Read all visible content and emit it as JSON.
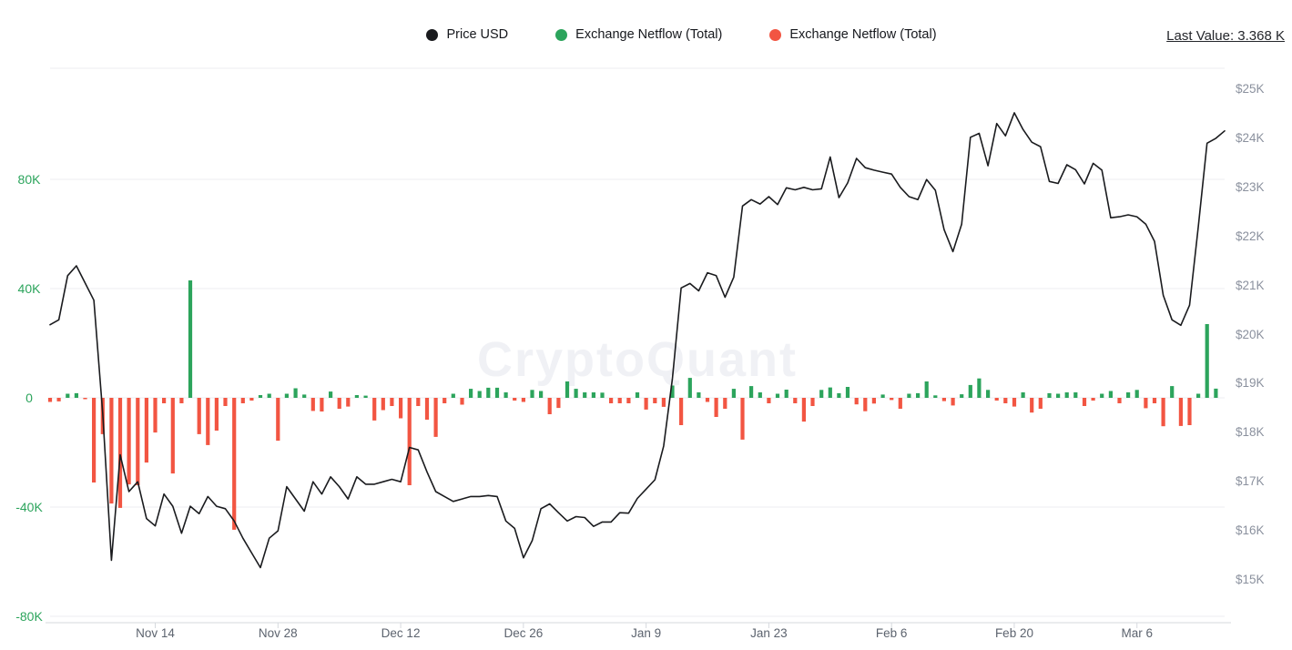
{
  "colors": {
    "price_line": "#1a1b1e",
    "netflow_positive": "#2ca45c",
    "netflow_negative": "#f25542",
    "left_axis_text": "#2ca45c",
    "gridline": "#ecedf1",
    "axis_line": "#d6d9de",
    "watermark": "#f0f1f5"
  },
  "legend": {
    "items": [
      {
        "label": "Price USD",
        "dot_color": "#1a1b1e"
      },
      {
        "label": "Exchange Netflow (Total)",
        "dot_color": "#2ca45c"
      },
      {
        "label": "Exchange Netflow (Total)",
        "dot_color": "#f25542"
      }
    ]
  },
  "header": {
    "last_value": "Last Value: 3.368 K"
  },
  "watermark": {
    "text": "CryptoQuant"
  },
  "axes": {
    "netflow": {
      "tick_labels": [
        "80K",
        "40K",
        "0",
        "-40K",
        "-80K"
      ]
    },
    "price": {
      "tick_labels": [
        "$25K",
        "$24K",
        "$23K",
        "$22K",
        "$21K",
        "$20K",
        "$19K",
        "$18K",
        "$17K",
        "$16K",
        "$15K"
      ]
    },
    "x": {
      "tick_labels": [
        "Nov 14",
        "Nov 28",
        "Dec 12",
        "Dec 26",
        "Jan 9",
        "Jan 23",
        "Feb 6",
        "Feb 20",
        "Mar 6"
      ]
    }
  },
  "chart_data": {
    "type": "line+bar",
    "title": "",
    "legend_position": "top-center",
    "grid": "horizontal-only",
    "x_ticks": [
      {
        "index": 12,
        "label": "Nov 14"
      },
      {
        "index": 26,
        "label": "Nov 28"
      },
      {
        "index": 40,
        "label": "Dec 12"
      },
      {
        "index": 54,
        "label": "Dec 26"
      },
      {
        "index": 68,
        "label": "Jan 9"
      },
      {
        "index": 82,
        "label": "Jan 23"
      },
      {
        "index": 96,
        "label": "Feb 6"
      },
      {
        "index": 110,
        "label": "Feb 20"
      },
      {
        "index": 124,
        "label": "Mar 6"
      }
    ],
    "price_axis": {
      "side": "right",
      "min": 15,
      "max": 25,
      "unit": "USD thousands",
      "tick_values": [
        25,
        24,
        23,
        22,
        21,
        20,
        19,
        18,
        17,
        16,
        15
      ]
    },
    "netflow_axis": {
      "side": "left",
      "min": -80,
      "max": 80,
      "unit": "K",
      "tick_values": [
        80,
        40,
        0,
        -40,
        -80
      ]
    },
    "price_series": {
      "name": "Price USD",
      "unit": "K USD",
      "values": [
        20.2,
        20.3,
        21.2,
        21.4,
        21.05,
        20.7,
        18.4,
        15.4,
        17.55,
        16.8,
        17.0,
        16.25,
        16.1,
        16.75,
        16.5,
        15.95,
        16.5,
        16.35,
        16.7,
        16.5,
        16.45,
        16.2,
        15.85,
        15.55,
        15.25,
        15.85,
        16.0,
        16.9,
        16.65,
        16.4,
        17.0,
        16.75,
        17.1,
        16.9,
        16.65,
        17.1,
        16.95,
        16.95,
        17.0,
        17.05,
        17.0,
        17.7,
        17.65,
        17.2,
        16.8,
        16.7,
        16.6,
        16.65,
        16.7,
        16.7,
        16.72,
        16.7,
        16.2,
        16.05,
        15.45,
        15.8,
        16.45,
        16.55,
        16.37,
        16.2,
        16.29,
        16.27,
        16.09,
        16.18,
        16.18,
        16.37,
        16.36,
        16.66,
        16.85,
        17.04,
        17.73,
        19.1,
        20.95,
        21.04,
        20.89,
        21.26,
        21.2,
        20.76,
        21.17,
        22.62,
        22.75,
        22.66,
        22.81,
        22.65,
        22.99,
        22.95,
        23.0,
        22.95,
        22.97,
        23.62,
        22.79,
        23.09,
        23.59,
        23.4,
        23.35,
        23.31,
        23.27,
        23.0,
        22.81,
        22.75,
        23.16,
        22.94,
        22.14,
        21.69,
        22.25,
        24.02,
        24.1,
        23.44,
        24.3,
        24.05,
        24.52,
        24.18,
        23.92,
        23.83,
        23.12,
        23.08,
        23.46,
        23.36,
        23.07,
        23.49,
        23.35,
        22.38,
        22.4,
        22.44,
        22.4,
        22.25,
        21.9,
        20.8,
        20.3,
        20.19,
        20.6,
        22.2,
        23.9,
        24.0,
        24.15
      ]
    },
    "netflow_series": {
      "name": "Exchange Netflow (Total)",
      "unit": "K",
      "last_value": "3.368 K",
      "values": [
        -1.5,
        -1.3,
        1.5,
        1.7,
        -0.5,
        -31,
        -13.3,
        -38.7,
        -40.3,
        -31.7,
        -32,
        -23.7,
        -12.7,
        -2,
        -27.7,
        -2,
        43,
        -13.3,
        -17.3,
        -12,
        -3,
        -48.3,
        -2,
        -1,
        1,
        1.5,
        -15.7,
        1.5,
        3.5,
        1.2,
        -4.8,
        -5,
        2.3,
        -4,
        -3.2,
        1,
        0.8,
        -8.3,
        -4.5,
        -3,
        -7.5,
        -32,
        -3,
        -8,
        -14.3,
        -2,
        1.5,
        -2.5,
        3.3,
        2.5,
        3.7,
        3.7,
        2,
        -1,
        -1.5,
        2.9,
        2.5,
        -6,
        -3.7,
        6,
        3.3,
        2,
        2,
        1.9,
        -2,
        -2,
        -2,
        2,
        -4.3,
        -2,
        -3.3,
        4.5,
        -10,
        7.3,
        2,
        -1.5,
        -7,
        -4,
        3.3,
        -15.3,
        4.3,
        2,
        -2,
        1.5,
        3,
        -2,
        -8.7,
        -3,
        2.9,
        3.8,
        1.7,
        4,
        -2.4,
        -4.9,
        -2.1,
        1.2,
        -0.8,
        -4,
        1.5,
        1.7,
        6,
        0.9,
        -1.2,
        -2.8,
        1.3,
        4.7,
        7.1,
        2.9,
        -1,
        -2,
        -3.2,
        2,
        -5.4,
        -4,
        1.7,
        1.5,
        2,
        2,
        -3,
        -1,
        1.5,
        2.5,
        -2,
        2,
        2.9,
        -3.8,
        -2,
        -10.4,
        4.3,
        -10.3,
        -10,
        1.5,
        27,
        3.368,
        null
      ]
    }
  }
}
